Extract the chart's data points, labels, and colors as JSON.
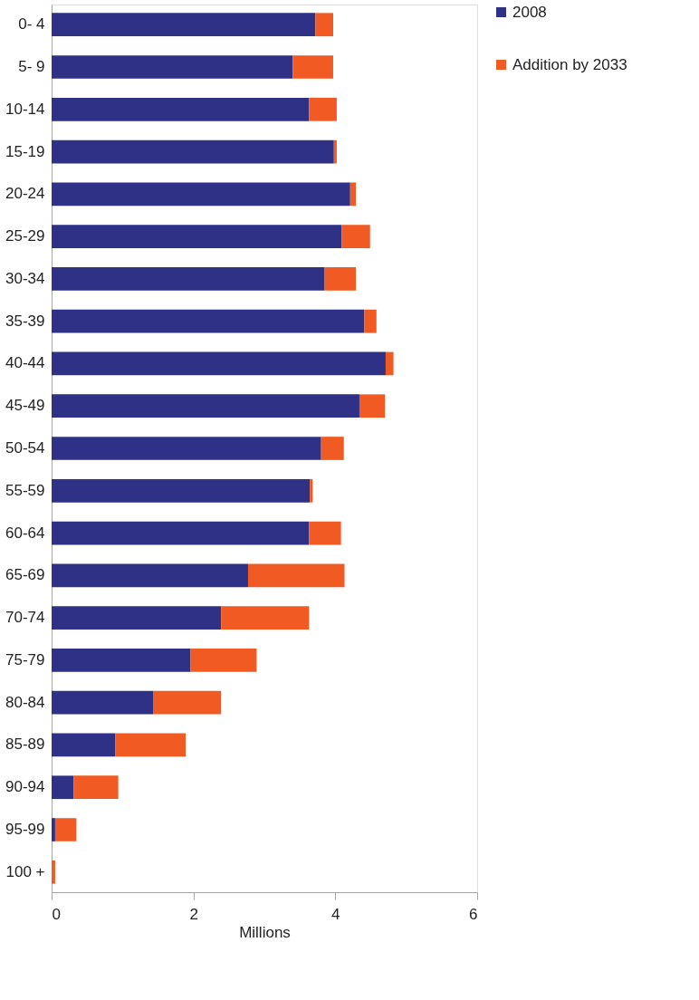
{
  "chart_data": {
    "type": "bar",
    "orientation": "horizontal",
    "stacked": true,
    "xlabel": "Millions",
    "categories": [
      "0- 4",
      "5- 9",
      "10-14",
      "15-19",
      "20-24",
      "25-29",
      "30-34",
      "35-39",
      "40-44",
      "45-49",
      "50-54",
      "55-59",
      "60-64",
      "65-69",
      "70-74",
      "75-79",
      "80-84",
      "85-89",
      "90-94",
      "95-99",
      "100 +"
    ],
    "series": [
      {
        "name": "2008",
        "color": "#2e3185",
        "values": [
          3.72,
          3.4,
          3.63,
          3.98,
          4.21,
          4.09,
          3.85,
          4.41,
          4.71,
          4.34,
          3.8,
          3.64,
          3.63,
          2.77,
          2.39,
          1.96,
          1.43,
          0.9,
          0.31,
          0.05,
          0.0
        ]
      },
      {
        "name": "Addition by 2033",
        "color": "#f15a22",
        "values": [
          0.25,
          0.57,
          0.39,
          0.04,
          0.08,
          0.4,
          0.44,
          0.17,
          0.11,
          0.36,
          0.32,
          0.04,
          0.45,
          1.36,
          1.24,
          0.93,
          0.96,
          0.99,
          0.63,
          0.3,
          0.05
        ]
      }
    ],
    "xlim": [
      0,
      6
    ],
    "xticks": [
      0,
      2,
      4,
      6
    ],
    "grid": false,
    "legend": "right"
  }
}
